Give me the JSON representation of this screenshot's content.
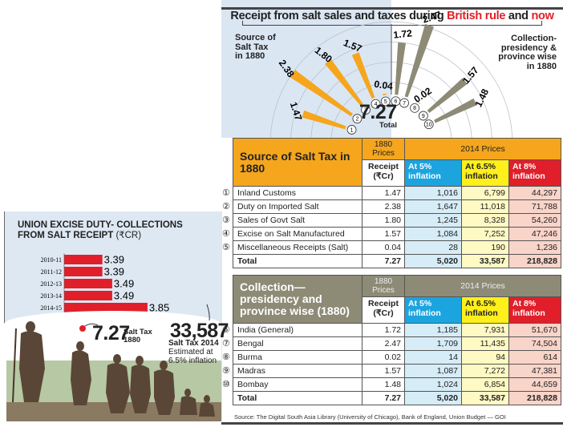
{
  "title": {
    "prefix": "Receipt from salt sales and taxes during ",
    "highlight1": "British rule",
    "middle": " and ",
    "highlight2": "now",
    "highlight_color": "#e0202a"
  },
  "radial": {
    "left_label": [
      "Source of",
      "Salt Tax",
      "in 1880"
    ],
    "right_label": [
      "Collection-",
      "presidency &",
      "province wise",
      "in 1880"
    ],
    "total_value": "7.27",
    "total_label": "Total",
    "left_color": "#f5a61d",
    "right_color": "#8d8b76"
  },
  "chart_data": [
    {
      "type": "bar",
      "title": "Receipt from salt sales and taxes during British rule and now — Source of Salt Tax in 1880 (radial)",
      "categories": [
        "1",
        "2",
        "3",
        "4",
        "5"
      ],
      "values": [
        1.47,
        2.38,
        1.8,
        1.57,
        0.04
      ],
      "xlabel": "",
      "ylabel": "₹Cr",
      "ylim": [
        0,
        2.5
      ]
    },
    {
      "type": "bar",
      "title": "Collection - presidency & province wise in 1880 (radial)",
      "categories": [
        "6",
        "7",
        "8",
        "9",
        "10"
      ],
      "values": [
        1.72,
        2.47,
        0.02,
        1.57,
        1.48
      ],
      "xlabel": "",
      "ylabel": "₹Cr",
      "ylim": [
        0,
        2.5
      ]
    },
    {
      "type": "bar",
      "title": "UNION EXCISE DUTY- COLLECTIONS FROM SALT RECEIPT (₹CR)",
      "categories": [
        "2010-11",
        "2011-12",
        "2012-13",
        "2013-14",
        "2014-15"
      ],
      "values": [
        3.39,
        3.39,
        3.49,
        3.49,
        3.85
      ],
      "xlabel": "",
      "ylabel": "",
      "xlim": [
        3,
        3.9
      ],
      "axis_tick": "3",
      "orientation": "horizontal",
      "color": "#e01f2a"
    }
  ],
  "table1": {
    "title": "Source of Salt Tax in 1880",
    "hdr_1880": "1880 Prices",
    "hdr_2014": "2014 Prices",
    "col_receipt": "Receipt (₹Cr)",
    "col_5": "At 5% inflation",
    "col_65": "At 6.5% inflation",
    "col_8": "At 8% inflation",
    "rows": [
      {
        "num": "1",
        "name": "Inland Customs",
        "receipt": "1.47",
        "p5": "1,016",
        "p65": "6,799",
        "p8": "44,297"
      },
      {
        "num": "2",
        "name": "Duty on Imported Salt",
        "receipt": "2.38",
        "p5": "1,647",
        "p65": "11,018",
        "p8": "71,788"
      },
      {
        "num": "3",
        "name": "Sales of Govt Salt",
        "receipt": "1.80",
        "p5": "1,245",
        "p65": "8,328",
        "p8": "54,260"
      },
      {
        "num": "4",
        "name": "Excise on Salt Manufactured",
        "receipt": "1.57",
        "p5": "1,084",
        "p65": "7,252",
        "p8": "47,246"
      },
      {
        "num": "5",
        "name": "Miscellaneous Receipts (Salt)",
        "receipt": "0.04",
        "p5": "28",
        "p65": "190",
        "p8": "1,236"
      }
    ],
    "total": {
      "name": "Total",
      "receipt": "7.27",
      "p5": "5,020",
      "p65": "33,587",
      "p8": "218,828"
    }
  },
  "table2": {
    "title": "Collection— presidency and province wise (1880)",
    "hdr_1880": "1880 Prices",
    "hdr_2014": "2014 Prices",
    "col_receipt": "Receipt (₹Cr)",
    "col_5": "At 5% inflation",
    "col_65": "At 6.5% inflation",
    "col_8": "At 8% inflation",
    "rows": [
      {
        "num": "6",
        "name": "India (General)",
        "receipt": "1.72",
        "p5": "1,185",
        "p65": "7,931",
        "p8": "51,670"
      },
      {
        "num": "7",
        "name": "Bengal",
        "receipt": "2.47",
        "p5": "1,709",
        "p65": "11,435",
        "p8": "74,504"
      },
      {
        "num": "8",
        "name": "Burma",
        "receipt": "0.02",
        "p5": "14",
        "p65": "94",
        "p8": "614"
      },
      {
        "num": "9",
        "name": "Madras",
        "receipt": "1.57",
        "p5": "1,087",
        "p65": "7,272",
        "p8": "47,381"
      },
      {
        "num": "10",
        "name": "Bombay",
        "receipt": "1.48",
        "p5": "1,024",
        "p65": "6,854",
        "p8": "44,659"
      }
    ],
    "total": {
      "name": "Total",
      "receipt": "7.27",
      "p5": "5,020",
      "p65": "33,587",
      "p8": "218,828"
    }
  },
  "source": "Source: The Digital South Asia Library (University of Chicago), Bank of England, Union Budget — GOI",
  "excise": {
    "title_line1": "UNION EXCISE DUTY- COLLECTIONS",
    "title_line2_bold": "FROM SALT RECEIPT ",
    "title_line2_light": "(₹CR)"
  },
  "callouts": {
    "v1880": "7.27",
    "v1880_label": [
      "Salt Tax",
      "1880"
    ],
    "v2014": "33,587",
    "v2014_label_bold": "Salt Tax 2014",
    "v2014_label": [
      "Estimated at",
      "6.5% inflation"
    ]
  }
}
